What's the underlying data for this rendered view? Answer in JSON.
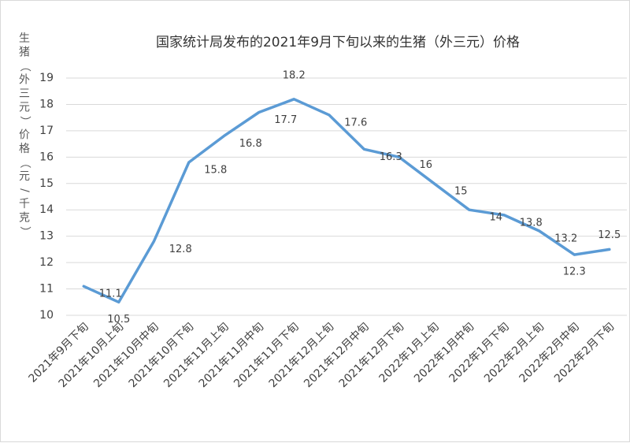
{
  "chart_data": {
    "type": "line",
    "title": "国家统计局发布的2021年9月下旬以来的生猪（外三元）价格",
    "ylabel": "生猪（外三元）价格（元/千克）",
    "xlabel": "",
    "ylim": [
      10,
      19
    ],
    "yticks": [
      10,
      11,
      12,
      13,
      14,
      15,
      16,
      17,
      18,
      19
    ],
    "grid": true,
    "categories": [
      "2021年9月下旬",
      "2021年10月上旬",
      "2021年10月中旬",
      "2021年10月下旬",
      "2021年11月上旬",
      "2021年11月中旬",
      "2021年11月下旬",
      "2021年12月上旬",
      "2021年12月中旬",
      "2021年12月下旬",
      "2022年1月上旬",
      "2022年1月中旬",
      "2022年1月下旬",
      "2022年2月上旬",
      "2022年2月中旬",
      "2022年2月下旬"
    ],
    "series": [
      {
        "color": "#5b9bd5",
        "values": [
          11.1,
          10.5,
          12.8,
          15.8,
          16.8,
          17.7,
          18.2,
          17.6,
          16.3,
          16,
          15,
          14,
          13.8,
          13.2,
          12.3,
          12.5
        ]
      }
    ]
  }
}
